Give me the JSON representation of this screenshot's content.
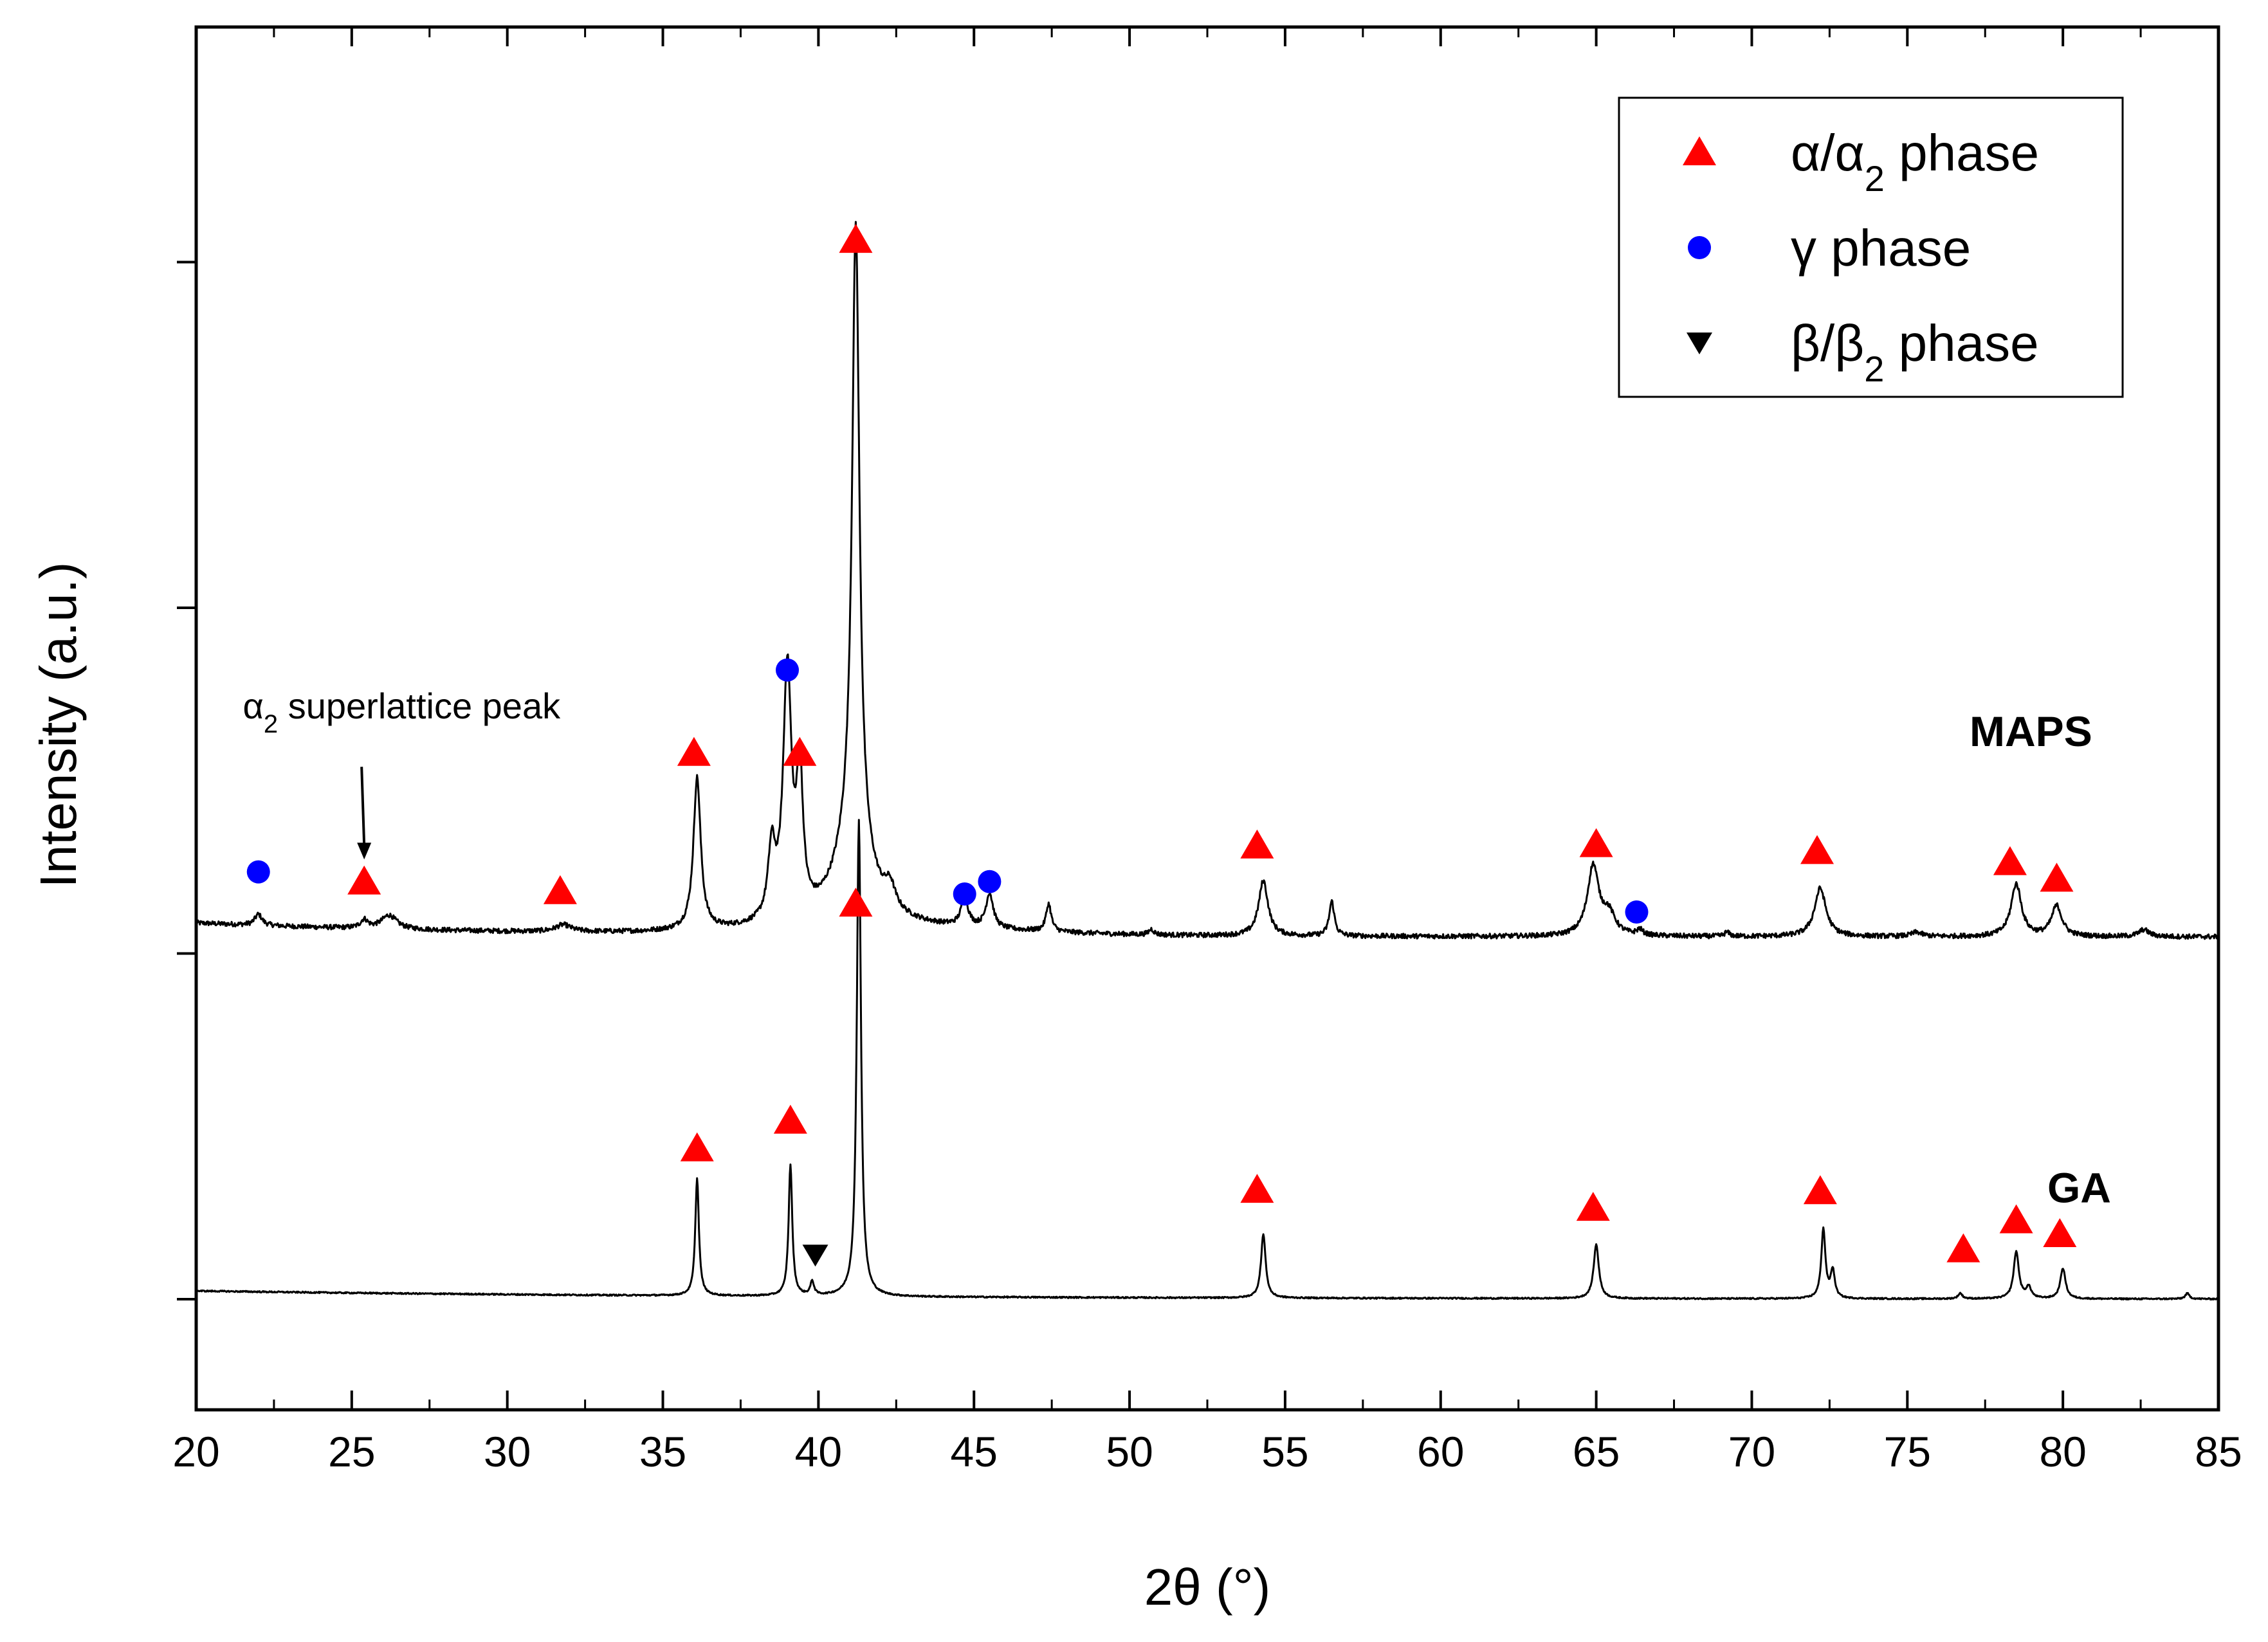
{
  "chart_data": {
    "type": "line",
    "title": "",
    "xlabel": "2θ (°)",
    "ylabel": "Intensity (a.u.)",
    "xlim": [
      20,
      85
    ],
    "ylim": [
      0,
      100
    ],
    "x_ticks": [
      20,
      25,
      30,
      35,
      40,
      45,
      50,
      55,
      60,
      65,
      70,
      75,
      80,
      85
    ],
    "y_ticks_unlabeled": [
      8,
      33,
      58,
      83
    ],
    "grid": false,
    "legend_position": "top-right",
    "legend": [
      {
        "symbol": "triangle-up",
        "color": "#ff0000",
        "label": "α/α",
        "sub": "2",
        "suffix": " phase"
      },
      {
        "symbol": "circle",
        "color": "#0000ff",
        "label": "γ phase",
        "sub": "",
        "suffix": ""
      },
      {
        "symbol": "triangle-down",
        "color": "#000000",
        "label": "β/β",
        "sub": "2",
        "suffix": " phase"
      }
    ],
    "series": [
      {
        "name": "MAPS",
        "label": "MAPS",
        "label_at": [
          77,
          48
        ],
        "baseline": 34.5,
        "noise": 0.35,
        "peaks": [
          [
            22.0,
            0.8,
            0.14
          ],
          [
            25.4,
            0.6,
            0.14
          ],
          [
            26.2,
            1.0,
            0.3
          ],
          [
            31.8,
            0.5,
            0.3
          ],
          [
            36.1,
            11.0,
            0.14
          ],
          [
            38.5,
            5.0,
            0.14
          ],
          [
            39.0,
            18.0,
            0.16
          ],
          [
            39.4,
            10.0,
            0.12
          ],
          [
            41.2,
            45.0,
            0.14
          ],
          [
            41.1,
            6.0,
            0.7
          ],
          [
            42.3,
            1.6,
            0.2
          ],
          [
            44.7,
            2.0,
            0.14
          ],
          [
            45.5,
            2.5,
            0.14
          ],
          [
            47.4,
            2.0,
            0.1
          ],
          [
            50.7,
            0.4,
            0.1
          ],
          [
            54.3,
            4.0,
            0.18
          ],
          [
            56.5,
            2.5,
            0.1
          ],
          [
            64.9,
            5.0,
            0.22
          ],
          [
            65.4,
            1.5,
            0.25
          ],
          [
            66.4,
            0.4,
            0.12
          ],
          [
            69.2,
            0.3,
            0.1
          ],
          [
            72.2,
            3.5,
            0.22
          ],
          [
            75.3,
            0.3,
            0.2
          ],
          [
            78.5,
            3.8,
            0.2
          ],
          [
            79.8,
            2.2,
            0.2
          ],
          [
            82.6,
            0.5,
            0.2
          ]
        ]
      },
      {
        "name": "GA",
        "label": "GA",
        "label_at": [
          79.5,
          15
        ],
        "baseline": 8.0,
        "noise": 0.1,
        "peaks": [
          [
            36.1,
            8.5,
            0.07
          ],
          [
            39.1,
            9.5,
            0.07
          ],
          [
            39.8,
            1.0,
            0.07
          ],
          [
            41.3,
            34.5,
            0.08
          ],
          [
            54.3,
            4.6,
            0.09
          ],
          [
            65.0,
            3.9,
            0.1
          ],
          [
            72.3,
            5.0,
            0.08
          ],
          [
            72.6,
            2.0,
            0.08
          ],
          [
            76.7,
            0.4,
            0.08
          ],
          [
            78.5,
            3.4,
            0.1
          ],
          [
            78.9,
            0.8,
            0.1
          ],
          [
            80.0,
            2.2,
            0.1
          ],
          [
            84.0,
            0.4,
            0.08
          ]
        ]
      }
    ],
    "markers": [
      {
        "phase": "alpha",
        "x": 25.4,
        "y": 38.2
      },
      {
        "phase": "alpha",
        "x": 31.7,
        "y": 37.5
      },
      {
        "phase": "alpha",
        "x": 36.0,
        "y": 47.5
      },
      {
        "phase": "alpha",
        "x": 39.4,
        "y": 47.5
      },
      {
        "phase": "alpha",
        "x": 41.2,
        "y": 84.6
      },
      {
        "phase": "alpha",
        "x": 41.2,
        "y": 36.6
      },
      {
        "phase": "alpha",
        "x": 54.1,
        "y": 40.8
      },
      {
        "phase": "alpha",
        "x": 65.0,
        "y": 40.9
      },
      {
        "phase": "alpha",
        "x": 72.1,
        "y": 40.4
      },
      {
        "phase": "alpha",
        "x": 78.3,
        "y": 39.6
      },
      {
        "phase": "alpha",
        "x": 79.8,
        "y": 38.4
      },
      {
        "phase": "gamma",
        "x": 22.0,
        "y": 38.9
      },
      {
        "phase": "gamma",
        "x": 39.0,
        "y": 53.5
      },
      {
        "phase": "gamma",
        "x": 44.7,
        "y": 37.3
      },
      {
        "phase": "gamma",
        "x": 45.5,
        "y": 38.2
      },
      {
        "phase": "gamma",
        "x": 66.3,
        "y": 36.0
      },
      {
        "phase": "alpha",
        "x": 36.1,
        "y": 18.9
      },
      {
        "phase": "alpha",
        "x": 39.1,
        "y": 20.9
      },
      {
        "phase": "alpha",
        "x": 54.1,
        "y": 15.9
      },
      {
        "phase": "alpha",
        "x": 64.9,
        "y": 14.6
      },
      {
        "phase": "alpha",
        "x": 72.2,
        "y": 15.8
      },
      {
        "phase": "alpha",
        "x": 76.8,
        "y": 11.6
      },
      {
        "phase": "alpha",
        "x": 78.5,
        "y": 13.7
      },
      {
        "phase": "alpha",
        "x": 79.9,
        "y": 12.7
      },
      {
        "phase": "beta",
        "x": 39.9,
        "y": 11.2
      }
    ],
    "annotations": [
      {
        "text_pre": "α",
        "text_sub": "2",
        "text_post": " superlattice peak",
        "text_at": [
          21.5,
          50
        ],
        "arrow_from": [
          25.4,
          46.5
        ],
        "arrow_to": [
          25.4,
          39.8
        ]
      }
    ]
  }
}
